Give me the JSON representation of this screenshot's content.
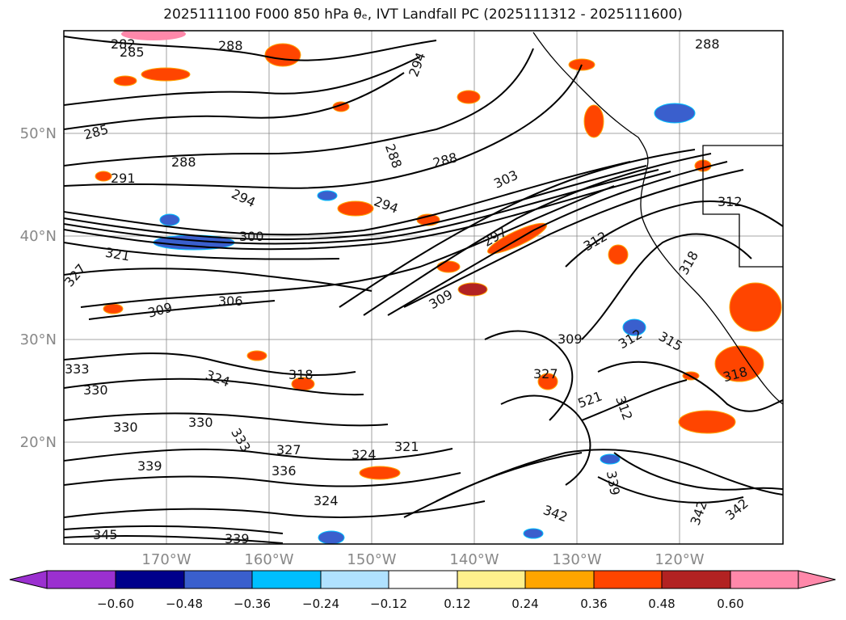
{
  "figure": {
    "title": "2025111100 F000 850 hPa θₑ, IVT Landfall PC (2025111312 - 2025111600)"
  },
  "map": {
    "lat_labels": [
      "50°N",
      "40°N",
      "30°N",
      "20°N"
    ],
    "lon_labels": [
      "170°W",
      "160°W",
      "150°W",
      "140°W",
      "130°W",
      "120°W"
    ],
    "contour_labels": [
      {
        "text": "282"
      },
      {
        "text": "285"
      },
      {
        "text": "288"
      },
      {
        "text": "294"
      },
      {
        "text": "288"
      },
      {
        "text": "285"
      },
      {
        "text": "288"
      },
      {
        "text": "288"
      },
      {
        "text": "288"
      },
      {
        "text": "291"
      },
      {
        "text": "294"
      },
      {
        "text": "294"
      },
      {
        "text": "303"
      },
      {
        "text": "300"
      },
      {
        "text": "321"
      },
      {
        "text": "327"
      },
      {
        "text": "297"
      },
      {
        "text": "312"
      },
      {
        "text": "318"
      },
      {
        "text": "312"
      },
      {
        "text": "309"
      },
      {
        "text": "306"
      },
      {
        "text": "309"
      },
      {
        "text": "309"
      },
      {
        "text": "312"
      },
      {
        "text": "315"
      },
      {
        "text": "318"
      },
      {
        "text": "333"
      },
      {
        "text": "330"
      },
      {
        "text": "324"
      },
      {
        "text": "318"
      },
      {
        "text": "330"
      },
      {
        "text": "330"
      },
      {
        "text": "333"
      },
      {
        "text": "327"
      },
      {
        "text": "339"
      },
      {
        "text": "336"
      },
      {
        "text": "324"
      },
      {
        "text": "321"
      },
      {
        "text": "324"
      },
      {
        "text": "327"
      },
      {
        "text": "521"
      },
      {
        "text": "312"
      },
      {
        "text": "339"
      },
      {
        "text": "342"
      },
      {
        "text": "342"
      },
      {
        "text": "342"
      },
      {
        "text": "339"
      },
      {
        "text": "345"
      }
    ],
    "colors": {
      "line": "#000000",
      "grid": "#888888",
      "land": "#ffffff"
    }
  },
  "colorbar": {
    "tick_labels": [
      "−0.60",
      "−0.48",
      "−0.36",
      "−0.24",
      "−0.12",
      "0.12",
      "0.24",
      "0.36",
      "0.48",
      "0.60"
    ],
    "colors": [
      "#9b30d0",
      "#00008b",
      "#3a5fcd",
      "#00bfff",
      "#b0e2ff",
      "#ffffff",
      "#fff08c",
      "#ffa500",
      "#ff4500",
      "#b22222",
      "#ff88aa"
    ]
  }
}
